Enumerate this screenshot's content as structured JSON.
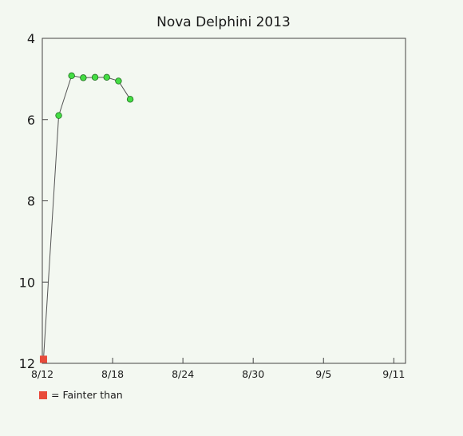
{
  "chart_data": {
    "type": "line",
    "title": "Nova Delphini 2013",
    "xlabel": "",
    "ylabel": "",
    "x_ticks": [
      "8/12",
      "8/18",
      "8/24",
      "8/30",
      "9/5",
      "9/11"
    ],
    "xlim": [
      "8/12",
      "9/12"
    ],
    "ylim": [
      12,
      4
    ],
    "y_inverted": true,
    "y_ticks": [
      4,
      6,
      8,
      10,
      12
    ],
    "grid": false,
    "series": [
      {
        "name": "",
        "marker": "circle",
        "color": "#44dd44",
        "points": [
          {
            "x": "8/13.4",
            "y": 5.9
          },
          {
            "x": "8/14.5",
            "y": 4.92
          },
          {
            "x": "8/15.5",
            "y": 4.97
          },
          {
            "x": "8/16.5",
            "y": 4.96
          },
          {
            "x": "8/17.5",
            "y": 4.96
          },
          {
            "x": "8/18.5",
            "y": 5.05
          },
          {
            "x": "8/19.5",
            "y": 5.5
          }
        ]
      },
      {
        "name": "Fainter than",
        "marker": "square",
        "color": "#e84a3a",
        "points": [
          {
            "x": "8/12.1",
            "y": 11.9
          }
        ]
      }
    ],
    "connect_all_points": true,
    "legend": {
      "placement": "bottom-left",
      "text": "= Fainter than",
      "marker_color": "#e84a3a"
    }
  }
}
